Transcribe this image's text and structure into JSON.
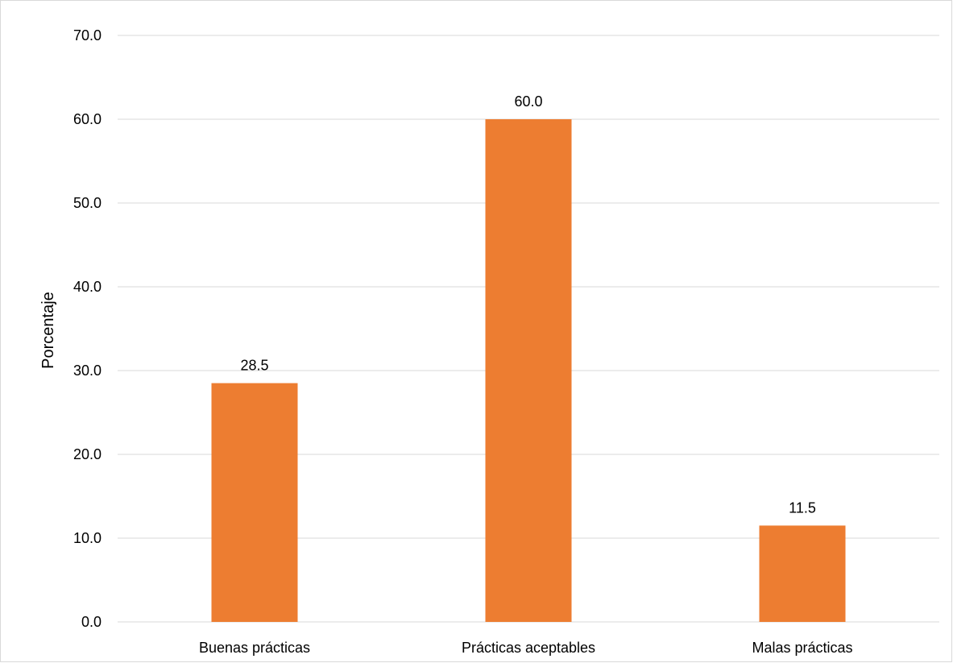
{
  "chart_data": {
    "type": "bar",
    "title": "",
    "xlabel": "",
    "ylabel": "Porcentaje",
    "categories": [
      "Buenas prácticas",
      "Prácticas aceptables",
      "Malas prácticas"
    ],
    "values": [
      28.5,
      60.0,
      11.5
    ],
    "data_labels": [
      "28.5",
      "60.0",
      "11.5"
    ],
    "ylim": [
      0,
      70
    ],
    "yticks": [
      0,
      10,
      20,
      30,
      40,
      50,
      60,
      70
    ],
    "ytick_labels": [
      "0.0",
      "10.0",
      "20.0",
      "30.0",
      "40.0",
      "50.0",
      "60.0",
      "70.0"
    ],
    "grid": true,
    "legend": "none",
    "colors": {
      "bar": "#ED7D31",
      "grid": "#D9D9D9",
      "text": "#000000"
    }
  }
}
